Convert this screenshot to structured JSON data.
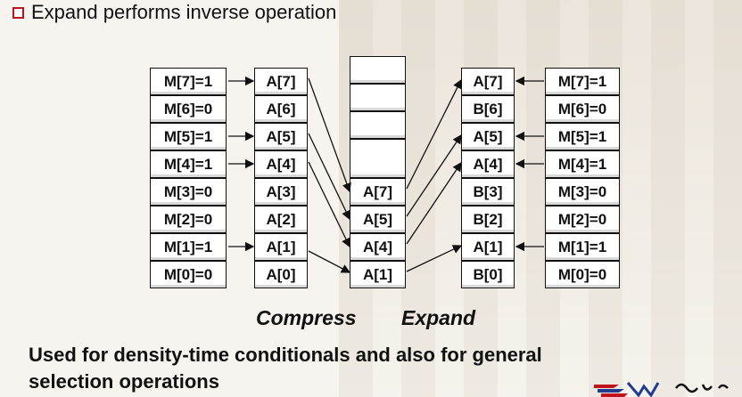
{
  "bullet": {
    "text": "Expand performs inverse operation"
  },
  "mask_left": [
    "M[7]=1",
    "M[6]=0",
    "M[5]=1",
    "M[4]=1",
    "M[3]=0",
    "M[2]=0",
    "M[1]=1",
    "M[0]=0"
  ],
  "a_vector": [
    "A[7]",
    "A[6]",
    "A[5]",
    "A[4]",
    "A[3]",
    "A[2]",
    "A[1]",
    "A[0]"
  ],
  "compressed": [
    "A[7]",
    "A[5]",
    "A[4]",
    "A[1]"
  ],
  "expanded": [
    "A[7]",
    "B[6]",
    "A[5]",
    "A[4]",
    "B[3]",
    "B[2]",
    "A[1]",
    "B[0]"
  ],
  "mask_right": [
    "M[7]=1",
    "M[6]=0",
    "M[5]=1",
    "M[4]=1",
    "M[3]=0",
    "M[2]=0",
    "M[1]=1",
    "M[0]=0"
  ],
  "captions": {
    "compress": "Compress",
    "expand": "Expand"
  },
  "footer": {
    "line1": "Used for density-time conditionals and also for general",
    "line2": "selection operations"
  },
  "colors": {
    "checkbox": "#c0141d",
    "logo_red": "#c0141d",
    "logo_blue": "#1f3c8f"
  }
}
